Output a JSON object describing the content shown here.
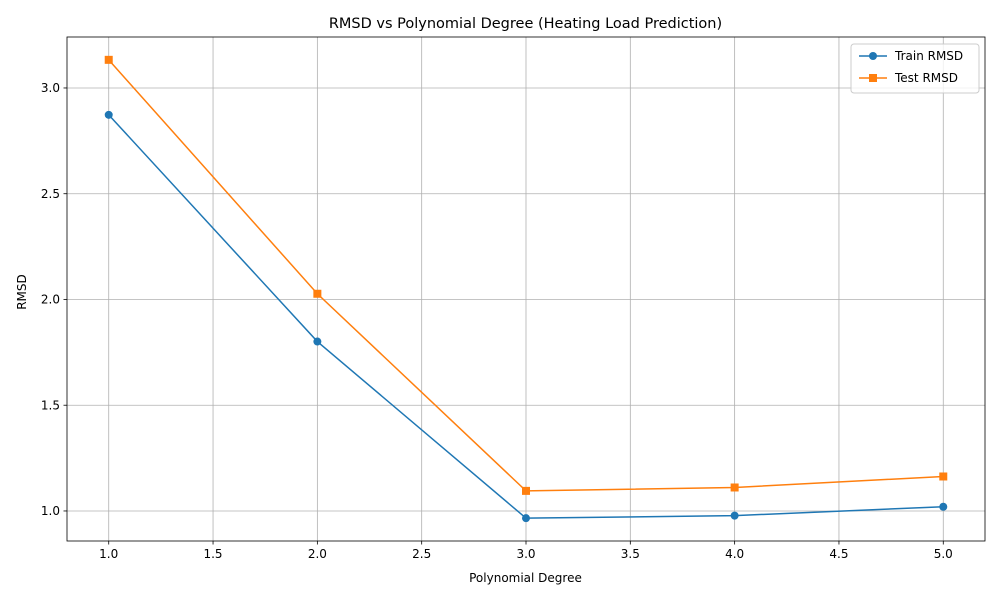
{
  "chart_data": {
    "type": "line",
    "title": "RMSD vs Polynomial Degree (Heating Load Prediction)",
    "xlabel": "Polynomial Degree",
    "ylabel": "RMSD",
    "x": [
      1,
      2,
      3,
      4,
      5
    ],
    "xlim": [
      0.8,
      5.2
    ],
    "ylim": [
      0.858,
      3.241
    ],
    "xticks": [
      1.0,
      1.5,
      2.0,
      2.5,
      3.0,
      3.5,
      4.0,
      4.5,
      5.0
    ],
    "yticks": [
      1.0,
      1.5,
      2.0,
      2.5,
      3.0
    ],
    "grid": true,
    "legend_position": "top-right",
    "series": [
      {
        "name": "Train RMSD",
        "values": [
          2.873,
          1.801,
          0.966,
          0.978,
          1.02
        ],
        "color": "#1f77b4",
        "marker": "circle"
      },
      {
        "name": "Test RMSD",
        "values": [
          3.133,
          2.027,
          1.095,
          1.111,
          1.163
        ],
        "color": "#ff7f0e",
        "marker": "square"
      }
    ]
  }
}
